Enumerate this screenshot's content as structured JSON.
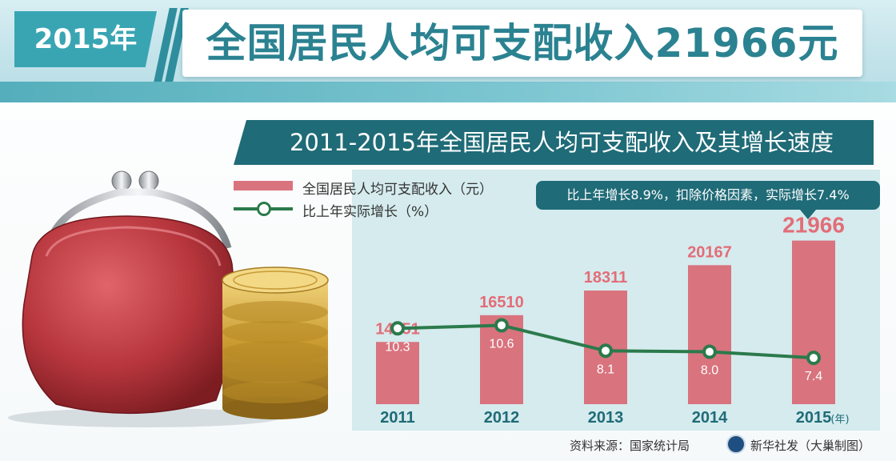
{
  "banner": {
    "year_tag": "2015年",
    "headline": "全国居民人均可支配收入21966元"
  },
  "chart_data": {
    "type": "bar",
    "title": "2011-2015年全国居民人均可支配收入及其增长速度",
    "categories": [
      "2011",
      "2012",
      "2013",
      "2014",
      "2015"
    ],
    "x_unit_label": "(年)",
    "series": [
      {
        "name": "全国居民人均可支配收入（元）",
        "type": "bar",
        "values": [
          14551,
          16510,
          18311,
          20167,
          21966
        ],
        "color": "#d9737e"
      },
      {
        "name": "比上年实际增长（%）",
        "type": "line",
        "values": [
          10.3,
          10.6,
          8.1,
          8.0,
          7.4
        ],
        "color": "#2b7a4b"
      }
    ],
    "annotation": "比上年增长8.9%，扣除价格因素，实际增长7.4%",
    "legend_position": "top-left"
  },
  "legend": {
    "bar_label": "全国居民人均可支配收入（元）",
    "line_label": "比上年实际增长（%）"
  },
  "source": "资料来源：国家统计局",
  "credit": "新华社发（大巢制图）",
  "colors": {
    "accent_teal": "#2b8291",
    "dark_teal": "#1f6b77",
    "bar_red": "#d9737e",
    "value_red": "#e36d78",
    "line_green": "#2b7a4b"
  }
}
